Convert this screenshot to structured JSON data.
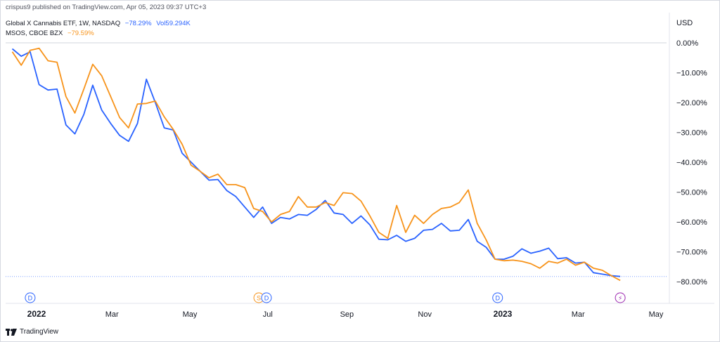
{
  "publish_line": "crispus9 published on TradingView.com, Apr 05, 2023 09:37 UTC+3",
  "legend": {
    "series1": {
      "name": "Global X Cannabis ETF, 1W, NASDAQ",
      "change": "−78.29%",
      "volume": "Vol59.294K"
    },
    "series2": {
      "name": "MSOS, CBOE BZX",
      "change": "−79.59%"
    }
  },
  "currency": "USD",
  "footer_brand": "TradingView",
  "colors": {
    "series1": "#2962ff",
    "series2": "#f7931a",
    "event_d": "#2962ff",
    "event_s": "#f7931a",
    "event_flash": "#9c27b0"
  },
  "chart_data": {
    "type": "line",
    "yunit": "%",
    "ylim": [
      -82,
      3
    ],
    "y_ticks": [
      "0.00%",
      "−10.00%",
      "−20.00%",
      "−30.00%",
      "−40.00%",
      "−50.00%",
      "−60.00%",
      "−70.00%",
      "−80.00%"
    ],
    "y_tick_values": [
      0,
      -10,
      -20,
      -30,
      -40,
      -50,
      -60,
      -70,
      -80
    ],
    "x_ticks": [
      {
        "label": "2022",
        "date": "2022-01-01",
        "bold": true
      },
      {
        "label": "Mar",
        "date": "2022-03-01",
        "bold": false
      },
      {
        "label": "May",
        "date": "2022-05-01",
        "bold": false
      },
      {
        "label": "Jul",
        "date": "2022-07-01",
        "bold": false
      },
      {
        "label": "Sep",
        "date": "2022-09-01",
        "bold": false
      },
      {
        "label": "Nov",
        "date": "2022-11-01",
        "bold": false
      },
      {
        "label": "2023",
        "date": "2023-01-01",
        "bold": true
      },
      {
        "label": "Mar",
        "date": "2023-03-01",
        "bold": false
      },
      {
        "label": "May",
        "date": "2023-05-01",
        "bold": false
      }
    ],
    "reference_line": -78.29,
    "series": [
      {
        "name": "Global X Cannabis ETF, 1W, NASDAQ",
        "color": "#2962ff",
        "points": [
          [
            "2021-12-13",
            -2
          ],
          [
            "2021-12-20",
            -4.5
          ],
          [
            "2021-12-27",
            -3
          ],
          [
            "2022-01-03",
            -14
          ],
          [
            "2022-01-10",
            -15.8
          ],
          [
            "2022-01-17",
            -15.5
          ],
          [
            "2022-01-24",
            -27.5
          ],
          [
            "2022-01-31",
            -30.5
          ],
          [
            "2022-02-07",
            -24
          ],
          [
            "2022-02-14",
            -14.2
          ],
          [
            "2022-02-21",
            -22.5
          ],
          [
            "2022-02-28",
            -27
          ],
          [
            "2022-03-07",
            -31
          ],
          [
            "2022-03-14",
            -33
          ],
          [
            "2022-03-21",
            -27
          ],
          [
            "2022-03-28",
            -12.2
          ],
          [
            "2022-04-04",
            -20
          ],
          [
            "2022-04-11",
            -28.5
          ],
          [
            "2022-04-18",
            -29.2
          ],
          [
            "2022-04-25",
            -37
          ],
          [
            "2022-05-02",
            -40
          ],
          [
            "2022-05-09",
            -43
          ],
          [
            "2022-05-16",
            -46
          ],
          [
            "2022-05-23",
            -45.8
          ],
          [
            "2022-05-30",
            -49.5
          ],
          [
            "2022-06-06",
            -51.5
          ],
          [
            "2022-06-13",
            -55
          ],
          [
            "2022-06-20",
            -58.5
          ],
          [
            "2022-06-27",
            -55
          ],
          [
            "2022-07-04",
            -60.5
          ],
          [
            "2022-07-11",
            -58.5
          ],
          [
            "2022-07-18",
            -59
          ],
          [
            "2022-07-25",
            -57.5
          ],
          [
            "2022-08-01",
            -57.8
          ],
          [
            "2022-08-08",
            -55.8
          ],
          [
            "2022-08-15",
            -52.8
          ],
          [
            "2022-08-22",
            -57
          ],
          [
            "2022-08-29",
            -57.5
          ],
          [
            "2022-09-05",
            -60.5
          ],
          [
            "2022-09-12",
            -58
          ],
          [
            "2022-09-19",
            -61
          ],
          [
            "2022-09-26",
            -65.8
          ],
          [
            "2022-10-03",
            -66
          ],
          [
            "2022-10-10",
            -64.5
          ],
          [
            "2022-10-17",
            -66.5
          ],
          [
            "2022-10-24",
            -65.5
          ],
          [
            "2022-10-31",
            -62.8
          ],
          [
            "2022-11-07",
            -62.5
          ],
          [
            "2022-11-14",
            -60.5
          ],
          [
            "2022-11-21",
            -63
          ],
          [
            "2022-11-28",
            -62.8
          ],
          [
            "2022-12-05",
            -59.2
          ],
          [
            "2022-12-12",
            -66.5
          ],
          [
            "2022-12-19",
            -68.5
          ],
          [
            "2022-12-26",
            -72.5
          ],
          [
            "2023-01-02",
            -72.5
          ],
          [
            "2023-01-09",
            -71.5
          ],
          [
            "2023-01-16",
            -69
          ],
          [
            "2023-01-23",
            -70.5
          ],
          [
            "2023-01-30",
            -69.8
          ],
          [
            "2023-02-06",
            -68.8
          ],
          [
            "2023-02-13",
            -72.3
          ],
          [
            "2023-02-20",
            -72
          ],
          [
            "2023-02-27",
            -73.8
          ],
          [
            "2023-03-06",
            -73.5
          ],
          [
            "2023-03-13",
            -77
          ],
          [
            "2023-03-20",
            -77.5
          ],
          [
            "2023-03-27",
            -78
          ],
          [
            "2023-04-03",
            -78.29
          ]
        ]
      },
      {
        "name": "MSOS, CBOE BZX",
        "color": "#f7931a",
        "points": [
          [
            "2021-12-13",
            -3
          ],
          [
            "2021-12-20",
            -7.5
          ],
          [
            "2021-12-27",
            -2.5
          ],
          [
            "2022-01-03",
            -1.8
          ],
          [
            "2022-01-10",
            -6
          ],
          [
            "2022-01-17",
            -6.5
          ],
          [
            "2022-01-24",
            -18
          ],
          [
            "2022-01-31",
            -23.5
          ],
          [
            "2022-02-07",
            -15.5
          ],
          [
            "2022-02-14",
            -7.2
          ],
          [
            "2022-02-21",
            -11
          ],
          [
            "2022-02-28",
            -18
          ],
          [
            "2022-03-07",
            -25
          ],
          [
            "2022-03-14",
            -28.5
          ],
          [
            "2022-03-21",
            -20.5
          ],
          [
            "2022-03-28",
            -20.3
          ],
          [
            "2022-04-04",
            -19.5
          ],
          [
            "2022-04-11",
            -24.8
          ],
          [
            "2022-04-18",
            -29
          ],
          [
            "2022-04-25",
            -34
          ],
          [
            "2022-05-02",
            -41
          ],
          [
            "2022-05-09",
            -43
          ],
          [
            "2022-05-16",
            -45.2
          ],
          [
            "2022-05-23",
            -44
          ],
          [
            "2022-05-30",
            -47.5
          ],
          [
            "2022-06-06",
            -47.5
          ],
          [
            "2022-06-13",
            -48.5
          ],
          [
            "2022-06-20",
            -55.5
          ],
          [
            "2022-06-27",
            -56.5
          ],
          [
            "2022-07-04",
            -60
          ],
          [
            "2022-07-11",
            -57.5
          ],
          [
            "2022-07-18",
            -56.5
          ],
          [
            "2022-07-25",
            -51.5
          ],
          [
            "2022-08-01",
            -55
          ],
          [
            "2022-08-08",
            -55
          ],
          [
            "2022-08-15",
            -53.5
          ],
          [
            "2022-08-22",
            -54.5
          ],
          [
            "2022-08-29",
            -50.2
          ],
          [
            "2022-09-05",
            -50.5
          ],
          [
            "2022-09-12",
            -53
          ],
          [
            "2022-09-19",
            -58
          ],
          [
            "2022-09-26",
            -63.5
          ],
          [
            "2022-10-03",
            -65.5
          ],
          [
            "2022-10-10",
            -54.5
          ],
          [
            "2022-10-17",
            -63.5
          ],
          [
            "2022-10-24",
            -57.8
          ],
          [
            "2022-10-31",
            -60.5
          ],
          [
            "2022-11-07",
            -57.5
          ],
          [
            "2022-11-14",
            -55.5
          ],
          [
            "2022-11-21",
            -55
          ],
          [
            "2022-11-28",
            -53.5
          ],
          [
            "2022-12-05",
            -49.3
          ],
          [
            "2022-12-12",
            -60.5
          ],
          [
            "2022-12-19",
            -66
          ],
          [
            "2022-12-26",
            -72.5
          ],
          [
            "2023-01-02",
            -73
          ],
          [
            "2023-01-09",
            -72.8
          ],
          [
            "2023-01-16",
            -73.2
          ],
          [
            "2023-01-23",
            -74
          ],
          [
            "2023-01-30",
            -75.5
          ],
          [
            "2023-02-06",
            -73.2
          ],
          [
            "2023-02-13",
            -73.8
          ],
          [
            "2023-02-20",
            -72.5
          ],
          [
            "2023-02-27",
            -74.5
          ],
          [
            "2023-03-06",
            -73.5
          ],
          [
            "2023-03-13",
            -75.5
          ],
          [
            "2023-03-20",
            -76.2
          ],
          [
            "2023-03-27",
            -78
          ],
          [
            "2023-04-03",
            -79.59
          ]
        ]
      }
    ],
    "events": [
      {
        "label": "D",
        "date": "2021-12-27",
        "kind": "dividend"
      },
      {
        "label": "S",
        "date": "2022-06-24",
        "kind": "split"
      },
      {
        "label": "D",
        "date": "2022-06-30",
        "kind": "dividend"
      },
      {
        "label": "D",
        "date": "2022-12-28",
        "kind": "dividend"
      },
      {
        "label": "⚡",
        "date": "2023-04-03",
        "kind": "earnings"
      }
    ]
  }
}
